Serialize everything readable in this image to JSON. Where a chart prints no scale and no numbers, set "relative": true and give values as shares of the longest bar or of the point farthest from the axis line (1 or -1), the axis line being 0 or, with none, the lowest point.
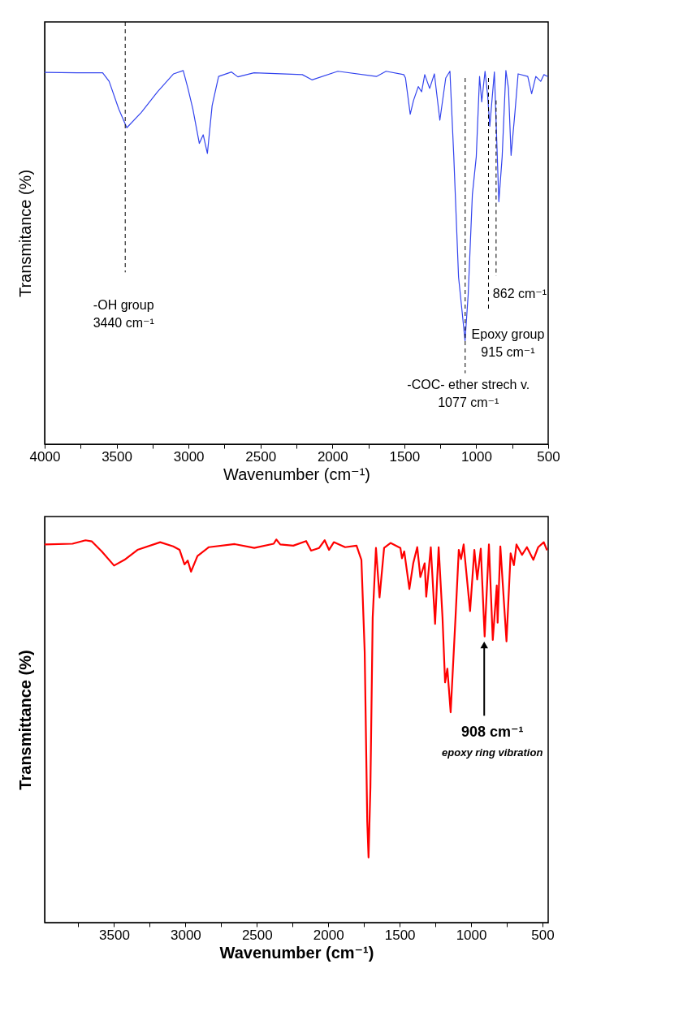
{
  "chart_data": [
    {
      "type": "line",
      "xlabel": "Wavenumber (cm⁻¹)",
      "ylabel": "Transmitance (%)",
      "relative": true,
      "grid": false,
      "line_style": "solid",
      "xlim": [
        4000,
        500
      ],
      "xticks": [
        4000,
        {
          "value": 3750,
          "label": null
        },
        3500,
        {
          "value": 3250,
          "label": null
        },
        3000,
        {
          "value": 2750,
          "label": null
        },
        2500,
        {
          "value": 2250,
          "label": null
        },
        2000,
        {
          "value": 1750,
          "label": null
        },
        1500,
        {
          "value": 1250,
          "label": null
        },
        1000,
        {
          "value": 750,
          "label": null
        },
        500
      ],
      "x": [
        4000,
        3776,
        3597,
        3552,
        3485,
        3429,
        3328,
        3216,
        3104,
        3037,
        3004,
        2970,
        2925,
        2898,
        2869,
        2836,
        2791,
        2701,
        2657,
        2545,
        2209,
        2142,
        1962,
        1694,
        1627,
        1504,
        1492,
        1459,
        1436,
        1403,
        1380,
        1358,
        1324,
        1291,
        1253,
        1212,
        1183,
        1156,
        1123,
        1096,
        1078,
        1056,
        1027,
        1000,
        977,
        962,
        939,
        921,
        906,
        874,
        843,
        820,
        794,
        776,
        758,
        731,
        709,
        642,
        615,
        586,
        552,
        530,
        503
      ],
      "series": [
        {
          "color": "#3344ee",
          "values": [
            0.995,
            0.994,
            0.994,
            0.971,
            0.897,
            0.847,
            0.888,
            0.943,
            0.991,
            1.0,
            0.952,
            0.897,
            0.805,
            0.828,
            0.778,
            0.906,
            0.984,
            0.996,
            0.983,
            0.994,
            0.989,
            0.975,
            0.998,
            0.984,
            0.998,
            0.989,
            0.98,
            0.883,
            0.92,
            0.957,
            0.943,
            0.989,
            0.952,
            0.991,
            0.867,
            0.98,
            0.998,
            0.769,
            0.447,
            0.346,
            0.277,
            0.401,
            0.668,
            0.769,
            0.984,
            0.916,
            0.998,
            0.934,
            0.851,
            0.996,
            0.649,
            0.769,
            1.0,
            0.952,
            0.773,
            0.888,
            0.991,
            0.984,
            0.938,
            0.984,
            0.971,
            0.989,
            0.984
          ]
        }
      ],
      "ref_lines": [
        {
          "axis": "x",
          "value": 3440,
          "label": "-OH group\n3440 cm⁻¹",
          "color": "#000000",
          "line_style": "dashed"
        },
        {
          "axis": "x",
          "value": 1077,
          "label": "-COC- ether strech v.\n1077 cm⁻¹",
          "color": "#000000",
          "line_style": "dashed"
        },
        {
          "axis": "x",
          "value": 915,
          "label": "Epoxy group\n915 cm⁻¹",
          "color": "#000000",
          "line_style": "dashed"
        },
        {
          "axis": "x",
          "value": 862,
          "label": "862 cm⁻¹",
          "color": "#000000",
          "line_style": "dashed"
        }
      ]
    },
    {
      "type": "line",
      "xlabel": "Wavenumber (cm⁻¹)",
      "ylabel": "Transmittance (%)",
      "relative": true,
      "grid": false,
      "line_style": "solid",
      "xlim": [
        3986,
        460
      ],
      "xticks": [
        {
          "value": 3750,
          "label": null
        },
        3500,
        {
          "value": 3250,
          "label": null
        },
        3000,
        {
          "value": 2750,
          "label": null
        },
        2500,
        {
          "value": 2250,
          "label": null
        },
        2000,
        {
          "value": 1750,
          "label": null
        },
        1500,
        {
          "value": 1250,
          "label": null
        },
        1000,
        {
          "value": 750,
          "label": null
        },
        500
      ],
      "x": [
        3986,
        3791,
        3700,
        3655,
        3586,
        3500,
        3427,
        3336,
        3177,
        3086,
        3041,
        3007,
        2984,
        2961,
        2916,
        2836,
        2655,
        2518,
        2382,
        2364,
        2336,
        2245,
        2155,
        2120,
        2064,
        2025,
        1995,
        1961,
        1882,
        1802,
        1768,
        1745,
        1727,
        1718,
        1705,
        1689,
        1666,
        1641,
        1609,
        1564,
        1495,
        1484,
        1468,
        1432,
        1405,
        1377,
        1355,
        1325,
        1314,
        1282,
        1252,
        1227,
        1200,
        1182,
        1166,
        1143,
        1109,
        1086,
        1070,
        1052,
        1007,
        977,
        957,
        932,
        905,
        875,
        848,
        820,
        814,
        795,
        752,
        723,
        700,
        682,
        643,
        609,
        564,
        530,
        491,
        468
      ],
      "series": [
        {
          "color": "#ff0000",
          "values": [
            0.987,
            0.989,
            0.998,
            0.995,
            0.969,
            0.932,
            0.947,
            0.973,
            0.993,
            0.982,
            0.973,
            0.935,
            0.945,
            0.916,
            0.957,
            0.98,
            0.988,
            0.978,
            0.989,
            1.0,
            0.987,
            0.984,
            0.996,
            0.971,
            0.978,
            0.998,
            0.973,
            0.993,
            0.98,
            0.984,
            0.947,
            0.707,
            0.264,
            0.17,
            0.352,
            0.796,
            0.978,
            0.849,
            0.978,
            0.991,
            0.978,
            0.951,
            0.969,
            0.871,
            0.938,
            0.98,
            0.902,
            0.938,
            0.851,
            0.98,
            0.78,
            0.98,
            0.796,
            0.627,
            0.663,
            0.549,
            0.796,
            0.973,
            0.949,
            0.987,
            0.813,
            0.973,
            0.896,
            0.976,
            0.747,
            0.987,
            0.738,
            0.88,
            0.783,
            0.982,
            0.734,
            0.964,
            0.933,
            0.987,
            0.96,
            0.98,
            0.947,
            0.98,
            0.993,
            0.972
          ]
        }
      ],
      "annotations": [
        {
          "text": "908 cm⁻¹",
          "x": 908,
          "y": 0.74
        },
        "epoxy ring vibration"
      ]
    }
  ]
}
